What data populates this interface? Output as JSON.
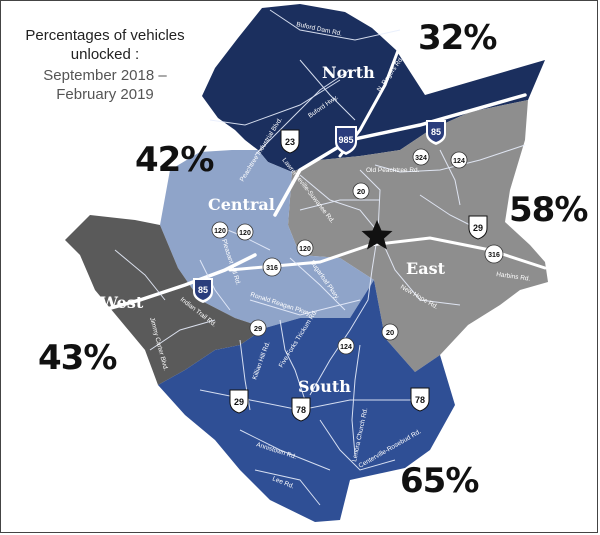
{
  "title": {
    "line1": "Percentages of vehicles",
    "line2": "unlocked :",
    "line3": "September 2018 –",
    "line4": "February 2019"
  },
  "regions": [
    {
      "name": "North",
      "percent": "32%",
      "color": "#1b2f5e"
    },
    {
      "name": "Central",
      "percent": "42%",
      "color": "#8fa4c9"
    },
    {
      "name": "East",
      "percent": "58%",
      "color": "#8e8e8e"
    },
    {
      "name": "West",
      "percent": "43%",
      "color": "#5a5a5a"
    },
    {
      "name": "South",
      "percent": "65%",
      "color": "#2f4f95"
    }
  ],
  "roads": {
    "buford_dam": "Buford Dam Rd.",
    "n_rogers": "N. Rogers Rd.",
    "buford_hwy": "Buford Hwy.",
    "peachtree_industrial": "Peachtree Industrial Blvd.",
    "lawrenceville_suwanee": "Lawrenceville-Suwanee Rd.",
    "old_peachtree": "Old Peachtree Rd.",
    "pleasant_hill": "Pleasant Hill Rd.",
    "sugarloaf": "Sugarloaf Pkwy.",
    "ronald_reagan": "Ronald Reagan Pkwy.",
    "indian_trail": "Indian Trail Rd.",
    "jimmy_carter": "Jimmy Carter Blvd.",
    "five_forks": "Five Forks Trickum Rd.",
    "new_hope": "New Hope Rd.",
    "harbins": "Harbins Rd.",
    "killian_hill": "Killian Hill Rd.",
    "lenora_church": "Lenora Church Rd.",
    "annistown": "Annistown Rd.",
    "lee": "Lee Rd.",
    "centerville": "Centerville-Rosebud Rd."
  },
  "shields": {
    "i985": "985",
    "i85_north": "85",
    "i85_west": "85",
    "us23": "23",
    "us29_east": "29",
    "us29_south": "29",
    "us78_a": "78",
    "us78_b": "78",
    "sr20_north": "20",
    "sr20_south": "20",
    "sr120_a": "120",
    "sr120_b": "120",
    "sr120_c": "120",
    "sr124_north": "124",
    "sr124_south": "124",
    "sr316_east": "316",
    "sr316_central": "316",
    "sr324": "324",
    "sr29": "29"
  },
  "marker": "county-seat-star"
}
